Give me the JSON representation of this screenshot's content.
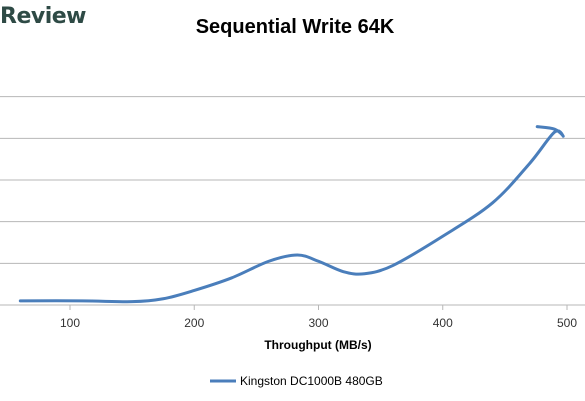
{
  "header": {
    "brand": "Review"
  },
  "chart_data": {
    "type": "line",
    "title": "Sequential Write 64K",
    "xlabel": "Throughput (MB/s)",
    "ylabel": "",
    "xlim": [
      50,
      510
    ],
    "ylim": [
      0,
      6
    ],
    "x_ticks": [
      100,
      200,
      300,
      400,
      500
    ],
    "gridlines_y": [
      1,
      2,
      3,
      4,
      5
    ],
    "grid": "horizontal",
    "legend_position": "bottom",
    "series": [
      {
        "name": "Kingston DC1000B 480GB",
        "color": "#4a7ebb",
        "x": [
          60,
          110,
          150,
          175,
          200,
          230,
          260,
          283,
          300,
          320,
          337,
          360,
          400,
          440,
          470,
          490,
          497,
          490,
          476
        ],
        "y": [
          0.1,
          0.1,
          0.08,
          0.15,
          0.35,
          0.65,
          1.05,
          1.2,
          1.05,
          0.8,
          0.75,
          0.95,
          1.65,
          2.45,
          3.4,
          4.15,
          4.05,
          4.22,
          4.28
        ]
      }
    ]
  }
}
